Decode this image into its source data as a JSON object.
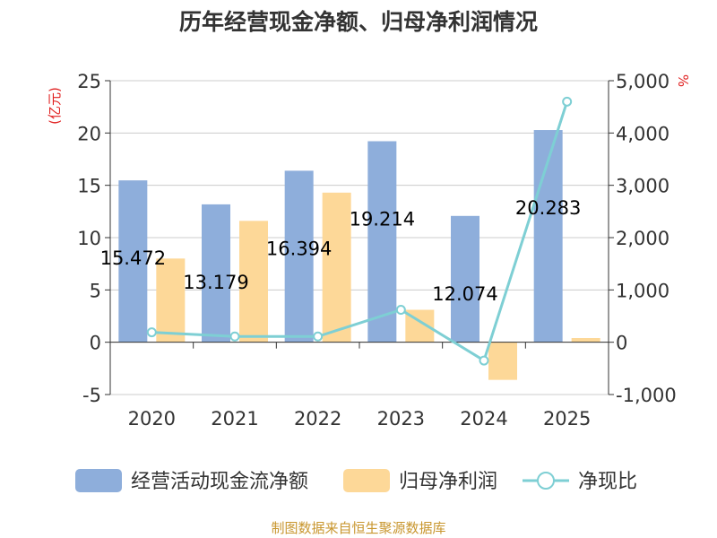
{
  "chart_data": {
    "type": "bar+line",
    "title": "历年经营现金净额、归母净利润情况",
    "left_axis_unit": "(亿元)",
    "right_axis_unit": "%",
    "categories": [
      "2020",
      "2021",
      "2022",
      "2023",
      "2024",
      "2025"
    ],
    "left_ylim": [
      -5,
      25
    ],
    "left_ticks": [
      -5,
      0,
      5,
      10,
      15,
      20,
      25
    ],
    "right_ylim": [
      -1000,
      5000
    ],
    "right_ticks": [
      -1000,
      0,
      1000,
      2000,
      3000,
      4000,
      5000
    ],
    "series": [
      {
        "name": "经营活动现金流净额",
        "type": "bar",
        "axis": "left",
        "color": "#8eaedb",
        "values": [
          15.472,
          13.179,
          16.394,
          19.214,
          12.074,
          20.283
        ]
      },
      {
        "name": "归母净利润",
        "type": "bar",
        "axis": "left",
        "color": "#fdd898",
        "values": [
          8.0,
          11.6,
          14.3,
          3.1,
          -3.6,
          0.4
        ]
      },
      {
        "name": "净现比",
        "type": "line",
        "axis": "right",
        "color": "#7ecfd4",
        "values": [
          190,
          110,
          110,
          620,
          -350,
          4600
        ]
      }
    ],
    "data_labels": [
      "15.472",
      "13.179",
      "16.394",
      "19.214",
      "12.074",
      "20.283"
    ],
    "source": "制图数据来自恒生聚源数据库"
  }
}
